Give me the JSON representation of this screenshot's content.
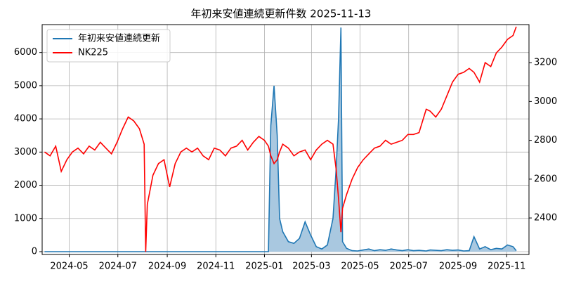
{
  "chart_data": {
    "type": "line",
    "title": "年初来安値連続更新件数 2025-11-13",
    "x": [
      -1,
      6,
      13,
      20,
      27,
      34,
      41,
      48,
      55,
      62,
      69,
      76,
      83,
      90,
      97,
      104,
      111,
      118,
      124,
      126,
      128,
      135,
      142,
      149,
      156,
      163,
      170,
      177,
      184,
      191,
      198,
      205,
      212,
      219,
      226,
      233,
      240,
      247,
      254,
      261,
      268,
      275,
      280,
      283,
      287,
      291,
      294,
      298,
      305,
      312,
      319,
      326,
      333,
      340,
      347,
      354,
      361,
      365,
      368,
      371,
      373,
      378,
      385,
      392,
      399,
      406,
      413,
      420,
      427,
      434,
      441,
      448,
      455,
      462,
      469,
      478,
      483,
      490,
      497,
      504,
      511,
      518,
      525,
      532,
      538,
      545,
      552,
      559,
      566,
      573,
      580,
      587,
      591
    ],
    "series": [
      {
        "name": "年初来安値連続更新",
        "color": "#1f77b4",
        "fill": "#a9c8e0",
        "values": [
          0,
          0,
          0,
          0,
          0,
          0,
          0,
          0,
          0,
          0,
          0,
          0,
          0,
          0,
          0,
          0,
          0,
          0,
          0,
          0,
          0,
          0,
          0,
          0,
          0,
          0,
          0,
          0,
          0,
          0,
          0,
          0,
          0,
          0,
          0,
          0,
          0,
          0,
          0,
          0,
          0,
          0,
          0,
          3800,
          5000,
          3500,
          1000,
          600,
          300,
          250,
          400,
          900,
          500,
          150,
          80,
          200,
          1000,
          2500,
          4000,
          6750,
          300,
          100,
          30,
          20,
          50,
          80,
          30,
          60,
          40,
          80,
          50,
          30,
          60,
          30,
          40,
          20,
          50,
          40,
          30,
          60,
          40,
          50,
          20,
          30,
          450,
          80,
          150,
          60,
          100,
          80,
          200,
          150,
          30
        ]
      },
      {
        "name": "NK225",
        "color": "#ff0000",
        "axis": "y2",
        "values": [
          2740,
          2720,
          2770,
          2640,
          2700,
          2740,
          2760,
          2730,
          2770,
          2750,
          2790,
          2760,
          2730,
          2790,
          2860,
          2920,
          2900,
          2860,
          2780,
          2225,
          2470,
          2620,
          2680,
          2700,
          2560,
          2680,
          2740,
          2760,
          2740,
          2760,
          2720,
          2700,
          2760,
          2750,
          2720,
          2760,
          2770,
          2800,
          2750,
          2790,
          2820,
          2800,
          2770,
          2720,
          2680,
          2700,
          2740,
          2780,
          2760,
          2720,
          2740,
          2750,
          2700,
          2750,
          2780,
          2800,
          2780,
          2650,
          2500,
          2327,
          2450,
          2520,
          2600,
          2660,
          2700,
          2730,
          2760,
          2770,
          2800,
          2780,
          2790,
          2800,
          2830,
          2830,
          2840,
          2960,
          2950,
          2920,
          2960,
          3030,
          3100,
          3140,
          3150,
          3170,
          3150,
          3100,
          3200,
          3180,
          3250,
          3280,
          3320,
          3340,
          3385
        ]
      }
    ],
    "xlim": [
      -4,
      607
    ],
    "xticks": [
      {
        "value": 30,
        "label": "2024-05"
      },
      {
        "value": 91,
        "label": "2024-07"
      },
      {
        "value": 153,
        "label": "2024-09"
      },
      {
        "value": 214,
        "label": "2024-11"
      },
      {
        "value": 275,
        "label": "2025-01"
      },
      {
        "value": 334,
        "label": "2025-03"
      },
      {
        "value": 395,
        "label": "2025-05"
      },
      {
        "value": 456,
        "label": "2025-07"
      },
      {
        "value": 518,
        "label": "2025-09"
      },
      {
        "value": 579,
        "label": "2025-11"
      }
    ],
    "ylim": [
      -85,
      6840
    ],
    "yticks": [
      0,
      1000,
      2000,
      3000,
      4000,
      5000,
      6000
    ],
    "y2lim": [
      2212,
      3396
    ],
    "y2ticks": [
      2400,
      2600,
      2800,
      3000,
      3200
    ],
    "grid": true,
    "legend": "upper-left"
  }
}
